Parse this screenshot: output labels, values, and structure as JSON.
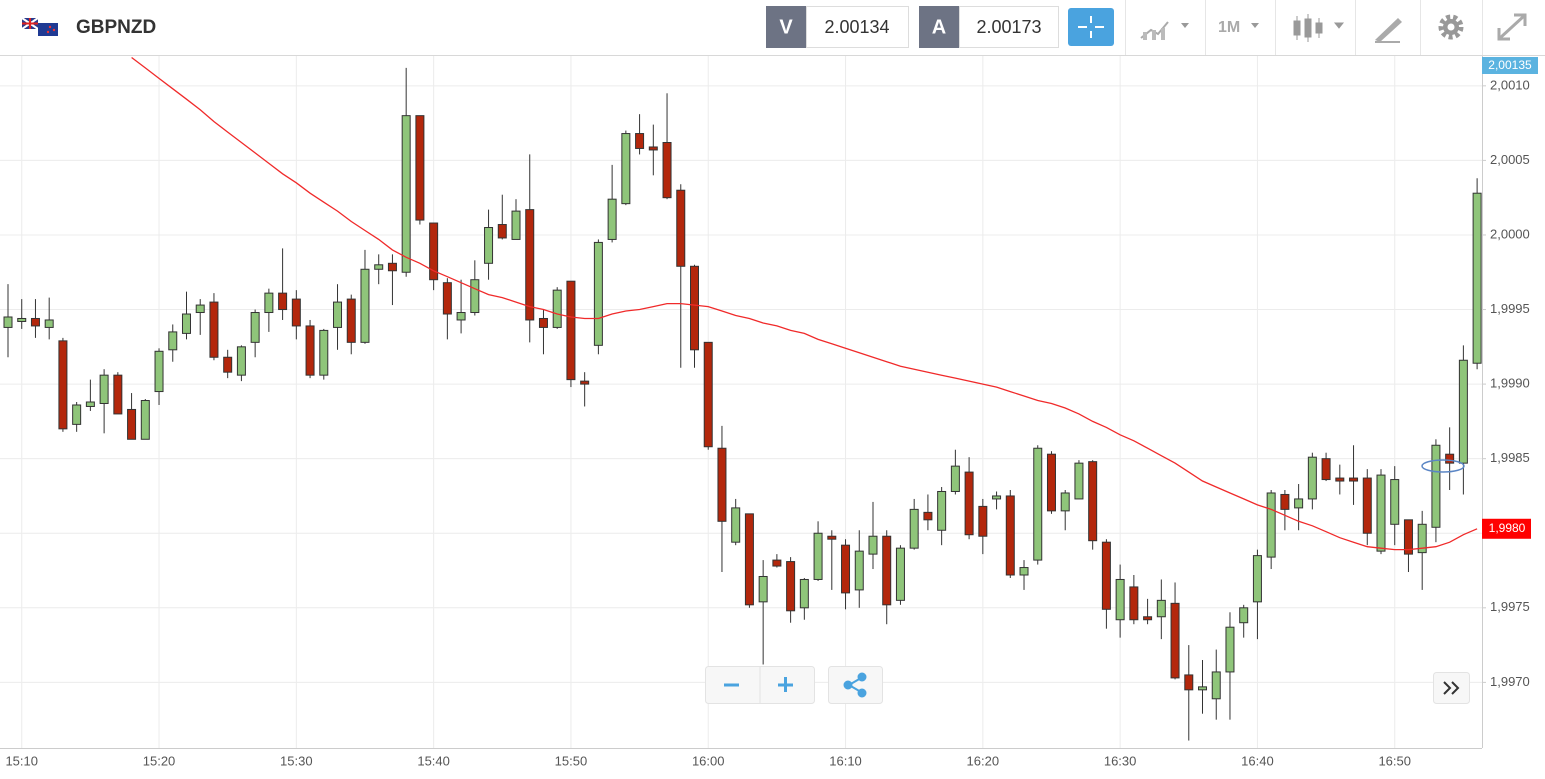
{
  "header": {
    "symbol": "GBPNZD",
    "bid_label": "V",
    "bid": 2.00134,
    "ask_label": "A",
    "ask": 2.00173,
    "timeframe": "1M"
  },
  "chart_data": {
    "type": "candlestick",
    "categories": [
      null,
      "15:10",
      null,
      null,
      null,
      null,
      null,
      null,
      null,
      null,
      null,
      "15:20",
      null,
      null,
      null,
      null,
      null,
      null,
      null,
      null,
      null,
      "15:30",
      null,
      null,
      null,
      null,
      null,
      null,
      null,
      null,
      null,
      "15:40",
      null,
      null,
      null,
      null,
      null,
      null,
      null,
      null,
      null,
      "15:50",
      null,
      null,
      null,
      null,
      null,
      null,
      null,
      null,
      null,
      "16:00",
      null,
      null,
      null,
      null,
      null,
      null,
      null,
      null,
      null,
      "16:10",
      null,
      null,
      null,
      null,
      null,
      null,
      null,
      null,
      null,
      "16:20",
      null,
      null,
      null,
      null,
      null,
      null,
      null,
      null,
      null,
      "16:30",
      null,
      null,
      null,
      null,
      null,
      null,
      null,
      null,
      null,
      "16:40",
      null,
      null,
      null,
      null,
      null,
      null,
      null,
      null,
      null,
      "16:50",
      null,
      null,
      null,
      null,
      null,
      null
    ],
    "ohlc": {
      "open": [
        1.99938,
        1.99942,
        1.99944,
        1.99938,
        1.99929,
        1.99873,
        1.99885,
        1.99887,
        1.99906,
        1.99883,
        1.99863,
        1.99895,
        1.99923,
        1.99934,
        1.99948,
        1.99955,
        1.99918,
        1.99906,
        1.99928,
        1.99948,
        1.99961,
        1.99957,
        1.99939,
        1.99906,
        1.99938,
        1.99957,
        1.99928,
        1.99977,
        1.99981,
        1.99975,
        2.0008,
        2.00008,
        1.99968,
        1.99943,
        1.99948,
        1.99981,
        2.00007,
        1.99997,
        2.00017,
        1.99944,
        1.99938,
        1.99969,
        1.99902,
        1.99926,
        1.99997,
        2.00021,
        2.00068,
        2.00059,
        2.00062,
        2.0003,
        1.99979,
        1.99928,
        1.99857,
        1.99794,
        1.99813,
        1.99754,
        1.99782,
        1.99781,
        1.9975,
        1.99769,
        1.99798,
        1.99792,
        1.99762,
        1.99786,
        1.99798,
        1.99755,
        1.9979,
        1.99814,
        1.99802,
        1.99828,
        1.99841,
        1.99818,
        1.99823,
        1.99825,
        1.99772,
        1.99782,
        1.99853,
        1.99815,
        1.99823,
        1.99848,
        1.99794,
        1.99742,
        1.99764,
        1.99744,
        1.99744,
        1.99753,
        1.99705,
        1.99695,
        1.99689,
        1.99707,
        1.9974,
        1.99754,
        1.99784,
        1.99826,
        1.99817,
        1.99823,
        1.9985,
        1.99837,
        1.99837,
        1.99837,
        1.99788,
        1.99806,
        1.99809,
        1.99787,
        1.99804,
        1.99853,
        1.99847,
        1.99914
      ],
      "high": [
        1.99967,
        1.99957,
        1.99957,
        1.99958,
        1.99931,
        1.99888,
        1.99903,
        1.9991,
        1.99908,
        1.99894,
        1.9989,
        1.99924,
        1.9994,
        1.99962,
        1.99957,
        1.99961,
        1.99923,
        1.99926,
        1.9995,
        1.99964,
        1.99991,
        1.99963,
        1.99943,
        1.99937,
        1.99967,
        1.9996,
        1.9999,
        1.99987,
        1.99987,
        2.00112,
        2.0008,
        2.00008,
        1.99971,
        1.9997,
        1.99983,
        2.00017,
        2.00027,
        2.00024,
        2.00054,
        1.9995,
        1.99965,
        1.99969,
        1.99908,
        1.99997,
        2.00047,
        2.0007,
        2.00081,
        2.00074,
        2.00095,
        2.00034,
        1.9998,
        1.99928,
        1.99872,
        1.99823,
        1.99813,
        1.99782,
        1.99786,
        1.99784,
        1.9977,
        1.99808,
        1.99802,
        1.99796,
        1.99802,
        1.99821,
        1.99802,
        1.99792,
        1.99823,
        1.99826,
        1.99831,
        1.99856,
        1.99851,
        1.99823,
        1.99828,
        1.99829,
        1.99782,
        1.99859,
        1.99855,
        1.99829,
        1.99849,
        1.99849,
        1.99796,
        1.99779,
        1.99772,
        1.99756,
        1.99769,
        1.99767,
        1.99725,
        1.99715,
        1.99722,
        1.99747,
        1.99752,
        1.99789,
        1.99829,
        1.99829,
        1.99833,
        1.99854,
        1.99854,
        1.99846,
        1.99859,
        1.99843,
        1.99843,
        1.99845,
        1.99809,
        1.99815,
        1.99863,
        1.99871,
        1.99926,
        2.00038
      ],
      "low": [
        1.99918,
        1.99937,
        1.99931,
        1.9993,
        1.99868,
        1.99868,
        1.99882,
        1.99867,
        1.9988,
        1.99863,
        1.99863,
        1.99886,
        1.99915,
        1.9993,
        1.99933,
        1.99916,
        1.99904,
        1.99902,
        1.99918,
        1.99935,
        1.99943,
        1.9993,
        1.99904,
        1.99903,
        1.99923,
        1.9992,
        1.99927,
        1.99967,
        1.99953,
        1.99972,
        2.00007,
        1.99963,
        1.9993,
        1.99934,
        1.99946,
        1.9997,
        1.99997,
        1.99997,
        1.99928,
        1.9992,
        1.99937,
        1.99898,
        1.99885,
        1.9992,
        1.99995,
        2.0002,
        2.00054,
        2.0004,
        2.00024,
        1.99911,
        1.99911,
        1.99856,
        1.99774,
        1.99792,
        1.9975,
        1.99712,
        1.99777,
        1.9974,
        1.99742,
        1.99768,
        1.99762,
        1.99749,
        1.9975,
        1.99776,
        1.99739,
        1.99752,
        1.99789,
        1.99802,
        1.99792,
        1.99826,
        1.99796,
        1.99786,
        1.99816,
        1.9977,
        1.99762,
        1.99779,
        1.99813,
        1.99802,
        1.99823,
        1.99789,
        1.99736,
        1.9973,
        1.99739,
        1.99739,
        1.99729,
        1.99702,
        1.99661,
        1.99679,
        1.99675,
        1.99675,
        1.9973,
        1.99729,
        1.99776,
        1.99802,
        1.99802,
        1.99816,
        1.99835,
        1.99826,
        1.99819,
        1.99792,
        1.99786,
        1.99792,
        1.99774,
        1.99762,
        1.99794,
        1.99829,
        1.99826,
        1.9991
      ],
      "close": [
        1.99945,
        1.99944,
        1.99939,
        1.99943,
        1.9987,
        1.99886,
        1.99888,
        1.99906,
        1.9988,
        1.99863,
        1.99889,
        1.99922,
        1.99935,
        1.99947,
        1.99953,
        1.99918,
        1.99908,
        1.99925,
        1.99948,
        1.99961,
        1.9995,
        1.99939,
        1.99906,
        1.99936,
        1.99955,
        1.99928,
        1.99977,
        1.9998,
        1.99976,
        2.0008,
        2.0001,
        1.9997,
        1.99947,
        1.99948,
        1.9997,
        2.00005,
        1.99998,
        2.00016,
        1.99943,
        1.99938,
        1.99963,
        1.99903,
        1.999,
        1.99995,
        2.00024,
        2.00068,
        2.00058,
        2.00057,
        2.00025,
        1.99979,
        1.99923,
        1.99858,
        1.99808,
        1.99817,
        1.99752,
        1.99771,
        1.99778,
        1.99748,
        1.99769,
        1.998,
        1.99796,
        1.9976,
        1.99788,
        1.99798,
        1.99752,
        1.9979,
        1.99816,
        1.99809,
        1.99828,
        1.99845,
        1.99799,
        1.99798,
        1.99825,
        1.99772,
        1.99777,
        1.99857,
        1.99815,
        1.99827,
        1.99847,
        1.99795,
        1.99749,
        1.99769,
        1.99742,
        1.99742,
        1.99755,
        1.99703,
        1.99695,
        1.99697,
        1.99707,
        1.99737,
        1.9975,
        1.99785,
        1.99827,
        1.99816,
        1.99823,
        1.99851,
        1.99836,
        1.99835,
        1.99835,
        1.998,
        1.99839,
        1.99836,
        1.99786,
        1.99806,
        1.99859,
        1.99847,
        1.99916,
        2.00028
      ]
    },
    "up_color": "#8fc57a",
    "down_color": "#b3270c",
    "ma": {
      "color": "#f02a2a",
      "values": [
        null,
        null,
        null,
        null,
        null,
        null,
        null,
        null,
        null,
        2.00119,
        2.00112,
        2.00105,
        2.00098,
        2.00091,
        2.00084,
        2.00076,
        2.00069,
        2.00062,
        2.00055,
        2.00048,
        2.00041,
        2.00035,
        2.00028,
        2.00022,
        2.00016,
        2.00009,
        2.00003,
        1.99997,
        1.9999,
        1.99985,
        1.99981,
        1.99976,
        1.99972,
        1.99968,
        1.99964,
        1.9996,
        1.99958,
        1.99955,
        1.99952,
        1.9995,
        1.99947,
        1.99945,
        1.99944,
        1.99944,
        1.99947,
        1.99949,
        1.9995,
        1.99952,
        1.99954,
        1.99954,
        1.99953,
        1.99952,
        1.99949,
        1.99946,
        1.99944,
        1.99941,
        1.99939,
        1.99936,
        1.99934,
        1.9993,
        1.99927,
        1.99924,
        1.99921,
        1.99918,
        1.99915,
        1.99912,
        1.9991,
        1.99908,
        1.99906,
        1.99904,
        1.99902,
        1.999,
        1.99898,
        1.99895,
        1.99892,
        1.99889,
        1.99887,
        1.99884,
        1.9988,
        1.99875,
        1.99871,
        1.99866,
        1.99862,
        1.99857,
        1.99852,
        1.99847,
        1.99841,
        1.99835,
        1.99831,
        1.99827,
        1.99823,
        1.99819,
        1.99816,
        1.99812,
        1.99808,
        1.99805,
        1.99801,
        1.99797,
        1.99794,
        1.99791,
        1.9979,
        1.99789,
        1.99789,
        1.9979,
        1.99791,
        1.99794,
        1.99799,
        1.99803
      ]
    },
    "ylim": [
      1.99656,
      2.0012
    ],
    "yticks": [
      {
        "value": 2.001,
        "label": "2,0010"
      },
      {
        "value": 2.0005,
        "label": "2,0005"
      },
      {
        "value": 2,
        "label": "2,0000"
      },
      {
        "value": 1.9995,
        "label": "1,9995"
      },
      {
        "value": 1.999,
        "label": "1,9990"
      },
      {
        "value": 1.9985,
        "label": "1,9985"
      },
      {
        "value": 1.998,
        "label": "1,9980"
      },
      {
        "value": 1.9975,
        "label": "1,9975"
      },
      {
        "value": 1.997,
        "label": "1,9970"
      }
    ],
    "grid": true,
    "current_price_label": "2,00135",
    "ma_label": "1,9980"
  }
}
